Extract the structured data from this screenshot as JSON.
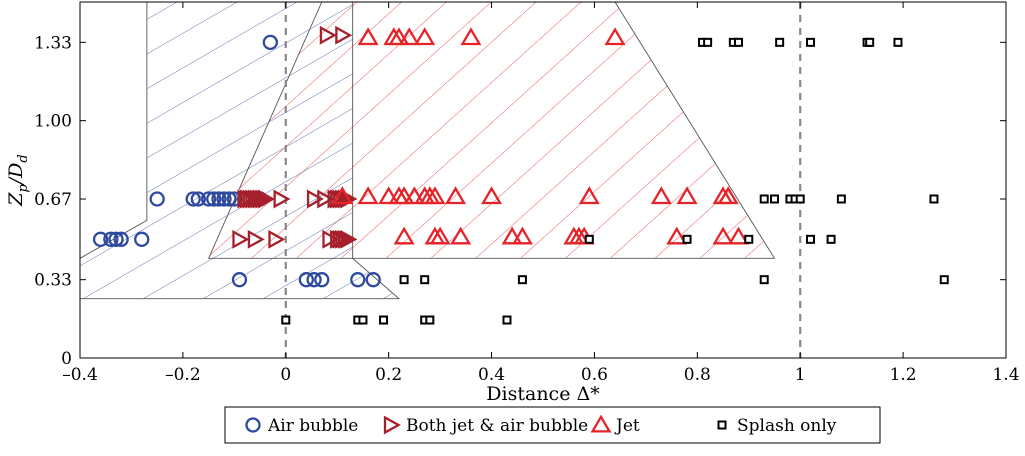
{
  "chart_data": {
    "type": "scatter",
    "xlabel": "Distance Δ*",
    "ylabel_main": "Z",
    "ylabel_sub_p": "p",
    "ylabel_sep": "/D",
    "ylabel_sub_d": "d",
    "xlim": [
      -0.4,
      1.4
    ],
    "ylim": [
      0,
      1.5
    ],
    "x_ticks": [
      -0.4,
      -0.2,
      0,
      0.2,
      0.4,
      0.6,
      0.8,
      1,
      1.2,
      1.4
    ],
    "x_tick_labels": [
      "–0.4",
      "–0.2",
      "0",
      "0.2",
      "0.4",
      "0.6",
      "0.8",
      "1",
      "1.2",
      "1.4"
    ],
    "y_ticks": [
      0,
      0.33,
      0.67,
      1.0,
      1.33
    ],
    "y_tick_labels": [
      "0",
      "0.33",
      "0.67",
      "1.00",
      "1.33"
    ],
    "reference_lines_x": [
      0,
      1
    ],
    "legend_position": "bottom-center",
    "regions": [
      {
        "name": "air-bubble-region",
        "hatch": "blue",
        "polygon": [
          [
            -0.4,
            0.25
          ],
          [
            -0.4,
            0.42
          ],
          [
            -0.27,
            0.58
          ],
          [
            -0.27,
            1.5
          ],
          [
            0.13,
            1.5
          ],
          [
            0.13,
            0.42
          ],
          [
            0.22,
            0.25
          ]
        ]
      },
      {
        "name": "jet-region",
        "hatch": "red",
        "polygon": [
          [
            -0.15,
            0.42
          ],
          [
            0.07,
            1.5
          ],
          [
            0.64,
            1.5
          ],
          [
            0.95,
            0.42
          ]
        ]
      }
    ],
    "series": [
      {
        "name": "Air bubble",
        "marker": "circle",
        "color": "#2e4a9e",
        "points": [
          [
            -0.03,
            1.33
          ],
          [
            -0.25,
            0.67
          ],
          [
            -0.18,
            0.67
          ],
          [
            -0.17,
            0.67
          ],
          [
            -0.15,
            0.67
          ],
          [
            -0.14,
            0.67
          ],
          [
            -0.13,
            0.67
          ],
          [
            -0.12,
            0.67
          ],
          [
            -0.11,
            0.67
          ],
          [
            -0.1,
            0.67
          ],
          [
            -0.08,
            0.67
          ],
          [
            -0.07,
            0.67
          ],
          [
            -0.05,
            0.67
          ],
          [
            -0.36,
            0.5
          ],
          [
            -0.34,
            0.5
          ],
          [
            -0.33,
            0.5
          ],
          [
            -0.32,
            0.5
          ],
          [
            -0.28,
            0.5
          ],
          [
            -0.09,
            0.33
          ],
          [
            0.04,
            0.33
          ],
          [
            0.055,
            0.33
          ],
          [
            0.07,
            0.33
          ],
          [
            0.14,
            0.33
          ],
          [
            0.17,
            0.33
          ]
        ]
      },
      {
        "name": "Both jet & air bubble",
        "marker": "triangle-right",
        "color": "#a5202a",
        "points": [
          [
            0.08,
            1.36
          ],
          [
            0.11,
            1.36
          ],
          [
            -0.07,
            0.67
          ],
          [
            -0.065,
            0.67
          ],
          [
            -0.06,
            0.67
          ],
          [
            -0.055,
            0.67
          ],
          [
            -0.05,
            0.67
          ],
          [
            -0.045,
            0.67
          ],
          [
            -0.04,
            0.67
          ],
          [
            -0.08,
            0.67
          ],
          [
            -0.075,
            0.67
          ],
          [
            -0.01,
            0.67
          ],
          [
            0.055,
            0.67
          ],
          [
            0.075,
            0.67
          ],
          [
            0.095,
            0.67
          ],
          [
            0.1,
            0.67
          ],
          [
            0.105,
            0.67
          ],
          [
            0.11,
            0.67
          ],
          [
            0.115,
            0.67
          ],
          [
            0.12,
            0.67
          ],
          [
            -0.09,
            0.5
          ],
          [
            -0.06,
            0.5
          ],
          [
            -0.02,
            0.5
          ],
          [
            0.085,
            0.5
          ],
          [
            0.1,
            0.5
          ],
          [
            0.105,
            0.5
          ],
          [
            0.11,
            0.5
          ],
          [
            0.115,
            0.5
          ],
          [
            0.12,
            0.5
          ]
        ]
      },
      {
        "name": "Jet",
        "marker": "triangle-up",
        "color": "#e5242a",
        "points": [
          [
            0.16,
            1.35
          ],
          [
            0.21,
            1.35
          ],
          [
            0.22,
            1.35
          ],
          [
            0.24,
            1.35
          ],
          [
            0.27,
            1.35
          ],
          [
            0.36,
            1.35
          ],
          [
            0.64,
            1.35
          ],
          [
            0.11,
            0.68
          ],
          [
            0.16,
            0.68
          ],
          [
            0.2,
            0.68
          ],
          [
            0.22,
            0.68
          ],
          [
            0.23,
            0.68
          ],
          [
            0.25,
            0.68
          ],
          [
            0.27,
            0.68
          ],
          [
            0.28,
            0.68
          ],
          [
            0.29,
            0.68
          ],
          [
            0.33,
            0.68
          ],
          [
            0.4,
            0.68
          ],
          [
            0.59,
            0.68
          ],
          [
            0.73,
            0.68
          ],
          [
            0.78,
            0.68
          ],
          [
            0.85,
            0.68
          ],
          [
            0.86,
            0.68
          ],
          [
            0.23,
            0.51
          ],
          [
            0.29,
            0.51
          ],
          [
            0.3,
            0.51
          ],
          [
            0.34,
            0.51
          ],
          [
            0.44,
            0.51
          ],
          [
            0.46,
            0.51
          ],
          [
            0.56,
            0.51
          ],
          [
            0.57,
            0.51
          ],
          [
            0.58,
            0.51
          ],
          [
            0.76,
            0.51
          ],
          [
            0.85,
            0.51
          ],
          [
            0.88,
            0.51
          ]
        ]
      },
      {
        "name": "Splash only",
        "marker": "square",
        "color": "#000000",
        "points": [
          [
            0.81,
            1.33
          ],
          [
            0.82,
            1.33
          ],
          [
            0.87,
            1.33
          ],
          [
            0.88,
            1.33
          ],
          [
            0.96,
            1.33
          ],
          [
            1.02,
            1.33
          ],
          [
            1.13,
            1.33
          ],
          [
            1.135,
            1.33
          ],
          [
            1.19,
            1.33
          ],
          [
            0.93,
            0.67
          ],
          [
            0.95,
            0.67
          ],
          [
            0.98,
            0.67
          ],
          [
            0.99,
            0.67
          ],
          [
            1.0,
            0.67
          ],
          [
            1.08,
            0.67
          ],
          [
            1.26,
            0.67
          ],
          [
            0.59,
            0.5
          ],
          [
            0.78,
            0.5
          ],
          [
            0.9,
            0.5
          ],
          [
            1.02,
            0.5
          ],
          [
            1.06,
            0.5
          ],
          [
            0.23,
            0.33
          ],
          [
            0.27,
            0.33
          ],
          [
            0.46,
            0.33
          ],
          [
            0.93,
            0.33
          ],
          [
            1.28,
            0.33
          ],
          [
            0.0,
            0.16
          ],
          [
            0.14,
            0.16
          ],
          [
            0.15,
            0.16
          ],
          [
            0.19,
            0.16
          ],
          [
            0.27,
            0.16
          ],
          [
            0.28,
            0.16
          ],
          [
            0.43,
            0.16
          ]
        ]
      }
    ]
  }
}
